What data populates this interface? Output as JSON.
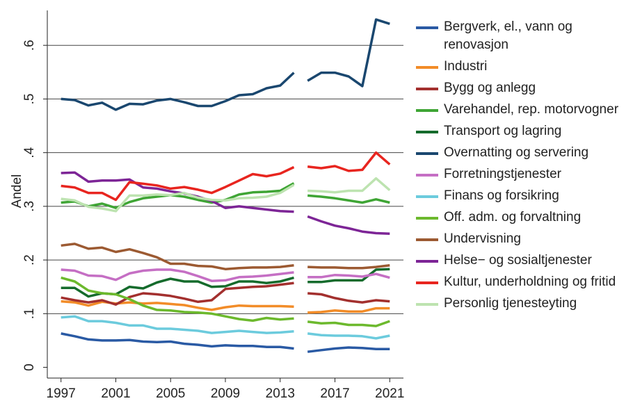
{
  "chart_data": {
    "type": "line",
    "ylabel": "Andel",
    "x": [
      1997,
      1998,
      1999,
      2000,
      2001,
      2002,
      2003,
      2004,
      2005,
      2006,
      2007,
      2008,
      2009,
      2010,
      2011,
      2012,
      2013,
      2014,
      2015,
      2016,
      2017,
      2018,
      2019,
      2020,
      2021
    ],
    "line_break_after": 2014,
    "xlim": [
      1996,
      2022
    ],
    "xticks": [
      1997,
      2001,
      2005,
      2009,
      2013,
      2017,
      2021
    ],
    "ylim": [
      -0.02,
      0.665
    ],
    "yticks": [
      {
        "value": 0,
        "label": "0"
      },
      {
        "value": 0.1,
        "label": ".1"
      },
      {
        "value": 0.2,
        "label": ".2"
      },
      {
        "value": 0.3,
        "label": ".3"
      },
      {
        "value": 0.4,
        "label": ".4"
      },
      {
        "value": 0.5,
        "label": ".5"
      },
      {
        "value": 0.6,
        "label": ".6"
      }
    ],
    "grid": true,
    "legend": "right",
    "series": [
      {
        "name": "Bergverk, el., vann og renovasjon",
        "color": "#2a5aa4",
        "values": [
          0.063,
          0.058,
          0.052,
          0.05,
          0.05,
          0.051,
          0.048,
          0.047,
          0.048,
          0.044,
          0.042,
          0.039,
          0.041,
          0.04,
          0.04,
          0.038,
          0.038,
          0.035,
          0.029,
          0.032,
          0.035,
          0.037,
          0.036,
          0.034,
          0.034
        ]
      },
      {
        "name": "Industri",
        "color": "#f28c28",
        "values": [
          0.123,
          0.121,
          0.115,
          0.122,
          0.119,
          0.121,
          0.119,
          0.12,
          0.118,
          0.116,
          0.111,
          0.107,
          0.112,
          0.115,
          0.114,
          0.114,
          0.114,
          0.113,
          0.102,
          0.103,
          0.106,
          0.104,
          0.104,
          0.11,
          0.11
        ]
      },
      {
        "name": "Bygg og anlegg",
        "color": "#a3302e",
        "values": [
          0.13,
          0.125,
          0.121,
          0.125,
          0.117,
          0.131,
          0.138,
          0.136,
          0.133,
          0.128,
          0.122,
          0.125,
          0.146,
          0.148,
          0.15,
          0.151,
          0.154,
          0.157,
          0.138,
          0.136,
          0.129,
          0.124,
          0.121,
          0.125,
          0.123
        ]
      },
      {
        "name": "Varehandel, rep. motorvogner",
        "color": "#3fa535",
        "values": [
          0.307,
          0.309,
          0.3,
          0.305,
          0.297,
          0.308,
          0.315,
          0.318,
          0.321,
          0.318,
          0.312,
          0.307,
          0.312,
          0.322,
          0.326,
          0.327,
          0.329,
          0.343,
          0.32,
          0.318,
          0.315,
          0.311,
          0.307,
          0.313,
          0.307
        ]
      },
      {
        "name": "Transport og lagring",
        "color": "#156b2c",
        "values": [
          0.148,
          0.148,
          0.132,
          0.138,
          0.136,
          0.15,
          0.147,
          0.158,
          0.165,
          0.16,
          0.16,
          0.15,
          0.151,
          0.16,
          0.16,
          0.157,
          0.16,
          0.167,
          0.159,
          0.159,
          0.162,
          0.162,
          0.162,
          0.182,
          0.183
        ]
      },
      {
        "name": "Overnatting og servering",
        "color": "#1a476f",
        "values": [
          0.5,
          0.498,
          0.488,
          0.493,
          0.48,
          0.491,
          0.49,
          0.497,
          0.5,
          0.494,
          0.487,
          0.487,
          0.496,
          0.507,
          0.509,
          0.52,
          0.525,
          0.549,
          0.534,
          0.549,
          0.549,
          0.542,
          0.524,
          0.648,
          0.64
        ]
      },
      {
        "name": "Forretningstjenester",
        "color": "#c56fc4",
        "values": [
          0.182,
          0.18,
          0.171,
          0.17,
          0.163,
          0.175,
          0.18,
          0.182,
          0.182,
          0.178,
          0.17,
          0.161,
          0.162,
          0.168,
          0.169,
          0.171,
          0.174,
          0.177,
          0.168,
          0.168,
          0.172,
          0.171,
          0.169,
          0.174,
          0.167
        ]
      },
      {
        "name": "Finans og forsikring",
        "color": "#6ccbdd",
        "values": [
          0.093,
          0.095,
          0.086,
          0.086,
          0.083,
          0.078,
          0.078,
          0.072,
          0.072,
          0.07,
          0.068,
          0.064,
          0.066,
          0.068,
          0.066,
          0.064,
          0.065,
          0.067,
          0.063,
          0.06,
          0.059,
          0.059,
          0.058,
          0.054,
          0.059
        ]
      },
      {
        "name": "Off. adm. og forvaltning",
        "color": "#6cb92d",
        "values": [
          0.167,
          0.16,
          0.143,
          0.138,
          0.136,
          0.127,
          0.115,
          0.107,
          0.106,
          0.103,
          0.102,
          0.1,
          0.095,
          0.09,
          0.087,
          0.092,
          0.089,
          0.091,
          0.085,
          0.082,
          0.083,
          0.079,
          0.079,
          0.077,
          0.086
        ]
      },
      {
        "name": "Undervisning",
        "color": "#9c5a32",
        "values": [
          0.227,
          0.23,
          0.221,
          0.223,
          0.215,
          0.22,
          0.213,
          0.205,
          0.193,
          0.193,
          0.189,
          0.188,
          0.183,
          0.185,
          0.186,
          0.186,
          0.187,
          0.19,
          0.187,
          0.186,
          0.186,
          0.185,
          0.185,
          0.187,
          0.19
        ]
      },
      {
        "name": "Helse− og sosialtjenester",
        "color": "#7d2596",
        "values": [
          0.362,
          0.363,
          0.346,
          0.348,
          0.348,
          0.35,
          0.335,
          0.333,
          0.328,
          0.324,
          0.318,
          0.31,
          0.297,
          0.3,
          0.297,
          0.294,
          0.291,
          0.29,
          0.281,
          0.272,
          0.264,
          0.259,
          0.253,
          0.25,
          0.249
        ]
      },
      {
        "name": "Kultur, underholdning og fritid",
        "color": "#e8251f",
        "values": [
          0.338,
          0.335,
          0.325,
          0.325,
          0.312,
          0.345,
          0.342,
          0.339,
          0.333,
          0.336,
          0.331,
          0.325,
          0.336,
          0.348,
          0.36,
          0.356,
          0.361,
          0.373,
          0.374,
          0.371,
          0.375,
          0.366,
          0.368,
          0.4,
          0.378
        ]
      },
      {
        "name": "Personlig tjenesteyting",
        "color": "#bde3b0",
        "values": [
          0.314,
          0.311,
          0.299,
          0.296,
          0.291,
          0.32,
          0.32,
          0.322,
          0.321,
          0.325,
          0.316,
          0.312,
          0.311,
          0.315,
          0.316,
          0.318,
          0.325,
          0.34,
          0.329,
          0.328,
          0.326,
          0.329,
          0.329,
          0.352,
          0.33
        ]
      }
    ]
  }
}
